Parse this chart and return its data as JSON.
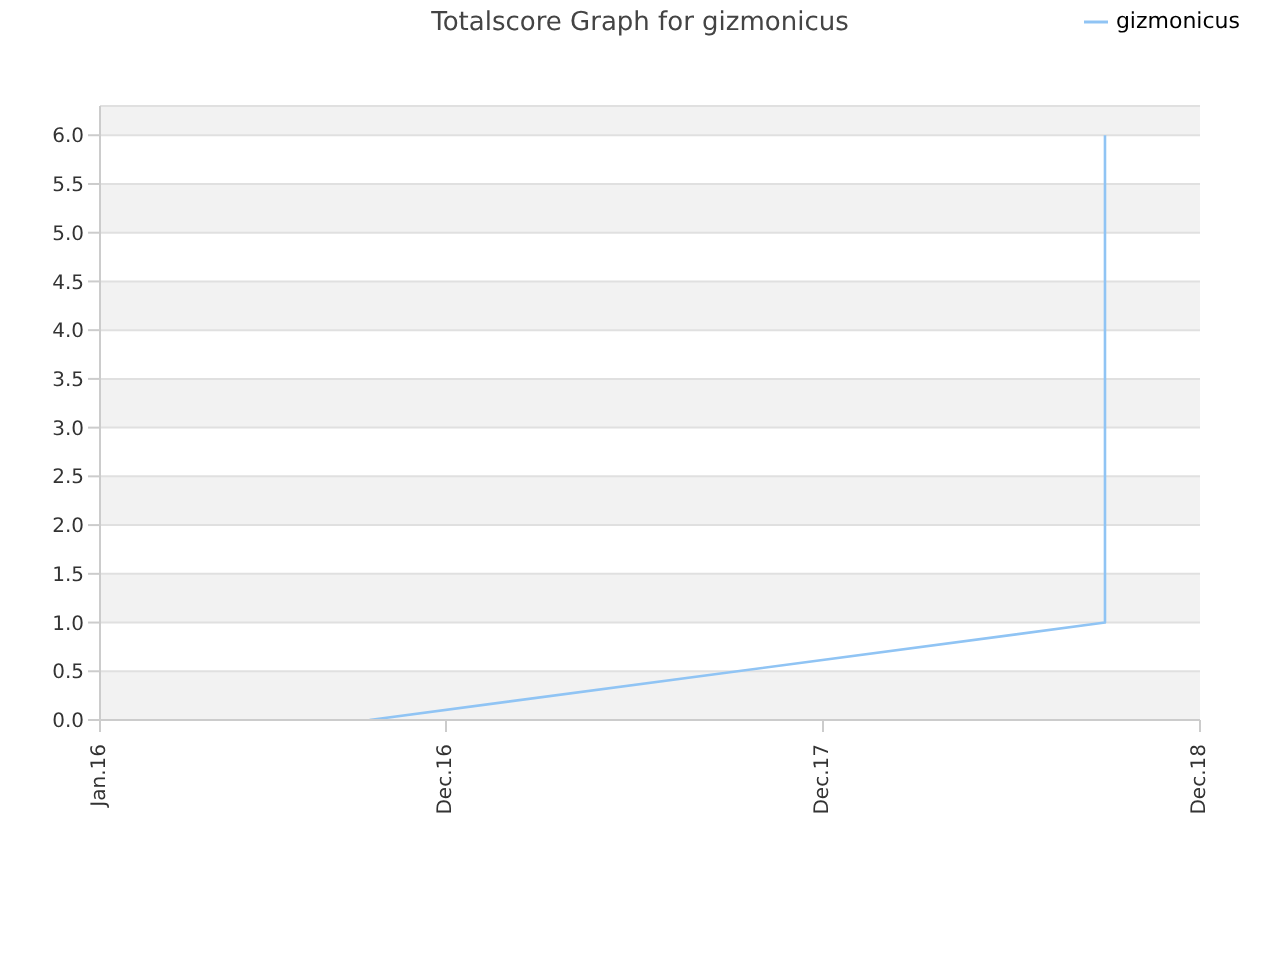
{
  "chart_data": {
    "type": "line",
    "title": "Totalscore Graph for gizmonicus",
    "series": [
      {
        "name": "gizmonicus",
        "color": "#90c4f4",
        "x": [
          "2016-09-18",
          "2018-08-31",
          "2018-08-31"
        ],
        "values": [
          0,
          1,
          6
        ]
      }
    ],
    "xlim": [
      "2016-01-01",
      "2018-12-01"
    ],
    "xticks": [
      {
        "value": "2016-01-01",
        "label": "Jan.16"
      },
      {
        "value": "2016-12-01",
        "label": "Dec.16"
      },
      {
        "value": "2017-12-01",
        "label": "Dec.17"
      },
      {
        "value": "2018-12-01",
        "label": "Dec.18"
      }
    ],
    "ylim": [
      0,
      6.3
    ],
    "yticks": [
      {
        "value": 0,
        "label": "0.0"
      },
      0.5,
      {
        "value": 1,
        "label": "1.0"
      },
      1.5,
      {
        "value": 2,
        "label": "2.0"
      },
      2.5,
      {
        "value": 3,
        "label": "3.0"
      },
      3.5,
      {
        "value": 4,
        "label": "4.0"
      },
      4.5,
      {
        "value": 5,
        "label": "5.0"
      },
      5.5,
      {
        "value": 6,
        "label": "6.0"
      }
    ],
    "grid": "y",
    "legend": "top right",
    "marker": "none",
    "line_style": "solid"
  }
}
